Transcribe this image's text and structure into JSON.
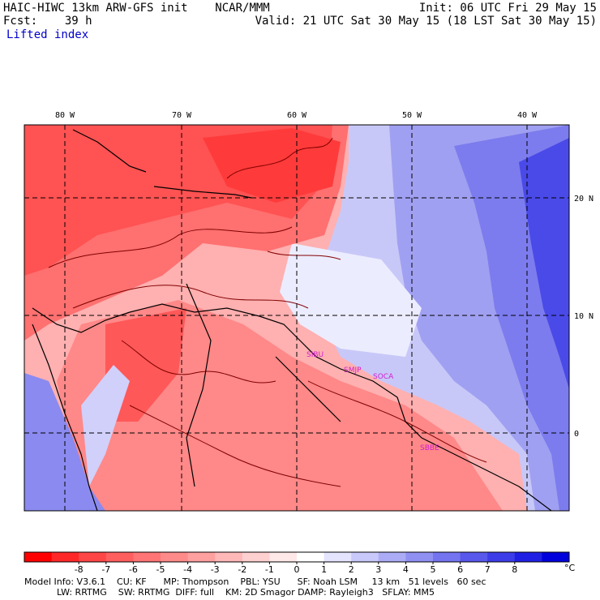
{
  "header": {
    "model_title": "HAIC-HIWC 13km ARW-GFS init",
    "center": "NCAR/MMM",
    "forecast_label": "Fcst:",
    "forecast_hours": "39 h",
    "init": "Init: 06 UTC Fri 29 May 15",
    "valid": "Valid: 21 UTC Sat 30 May 15 (18 LST Sat 30 May 15)",
    "field": "Lifted index"
  },
  "map": {
    "longitude_labels": [
      "80 W",
      "70 W",
      "60 W",
      "50 W",
      "40 W"
    ],
    "latitude_labels": [
      "20 N",
      "10 N",
      "0"
    ],
    "stations": [
      "SIBU",
      "SMJP",
      "SOCA",
      "SBBE"
    ],
    "colors": {
      "unstable": "#ff4040",
      "moderate": "#ff9a9a",
      "neutral": "#ffffff",
      "stable": "#8c8cf5",
      "very_stable": "#2a2ae8",
      "coastline": "#000000",
      "contour": "#800000",
      "station_text": "#d020d0"
    }
  },
  "colorbar": {
    "ticks": [
      "-8",
      "-7",
      "-6",
      "-5",
      "-4",
      "-3",
      "-2",
      "-1",
      "0",
      "1",
      "2",
      "3",
      "4",
      "5",
      "6",
      "7",
      "8"
    ],
    "unit": "°C",
    "colors": [
      "#ff0000",
      "#ff2828",
      "#ff4646",
      "#ff5e5e",
      "#ff7474",
      "#ff8a8a",
      "#ffa0a0",
      "#ffb8b8",
      "#ffd0d0",
      "#ffe8e8",
      "#ffffff",
      "#e4e4ff",
      "#c8c8fa",
      "#acacf6",
      "#9090f3",
      "#7474f0",
      "#5858ec",
      "#3c3ce8",
      "#2020e4",
      "#0000dc"
    ]
  },
  "footer": {
    "line1": "Model Info: V3.6.1    CU: KF      MP: Thompson    PBL: YSU      SF: Noah LSM     13 km   51 levels   60 sec",
    "line2": "LW: RRTMG    SW: RRTMG  DIFF: full    KM: 2D Smagor DAMP: Rayleigh3   SFLAY: MM5"
  }
}
